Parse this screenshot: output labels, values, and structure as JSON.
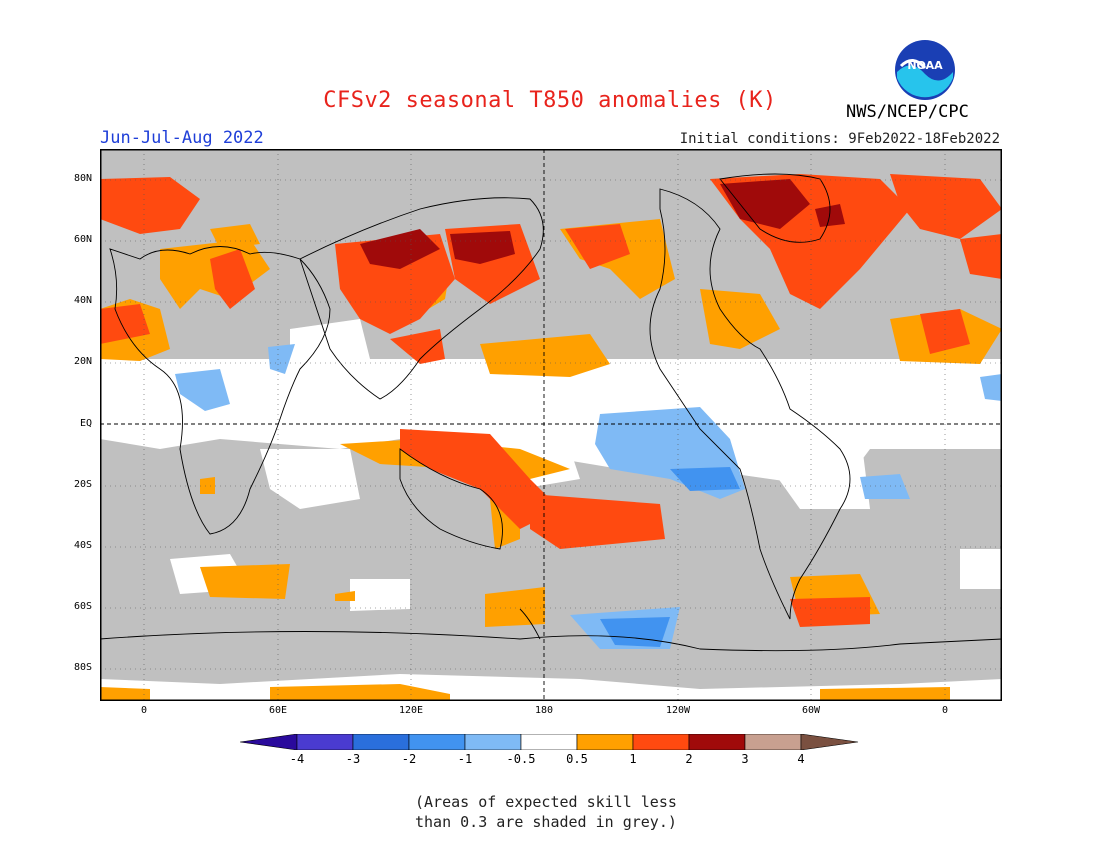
{
  "title": "CFSv2 seasonal T850 anomalies (K)",
  "season": "Jun-Jul-Aug 2022",
  "initial_conditions": "Initial conditions: 9Feb2022-18Feb2022",
  "agency": "NWS/NCEP/CPC",
  "logo_text": "NOAA",
  "lat_labels": [
    "80N",
    "60N",
    "40N",
    "20N",
    "EQ",
    "20S",
    "40S",
    "60S",
    "80S"
  ],
  "lon_labels": [
    "0",
    "60E",
    "120E",
    "180",
    "120W",
    "60W",
    "0"
  ],
  "colorbar": {
    "levels": [
      "-4",
      "-3",
      "-2",
      "-1",
      "-0.5",
      "0.5",
      "1",
      "2",
      "3",
      "4"
    ],
    "colors": [
      "#2a0a9c",
      "#4a3bd0",
      "#2a6fdc",
      "#4193f0",
      "#7fbaf5",
      "#ffffff",
      "#ffa000",
      "#ff4a10",
      "#a00a0a",
      "#c8a090",
      "#7a5040"
    ]
  },
  "colors": {
    "grey_mask": "#c0c0c0",
    "weak": "#ffffff",
    "orange": "#ffa000",
    "red": "#ff4a10",
    "darkred": "#a00a0a",
    "lightblue": "#7fbaf5",
    "blue": "#4193f0"
  },
  "note": [
    "(Areas of expected skill less",
    "than 0.3 are shaded in grey.)"
  ]
}
